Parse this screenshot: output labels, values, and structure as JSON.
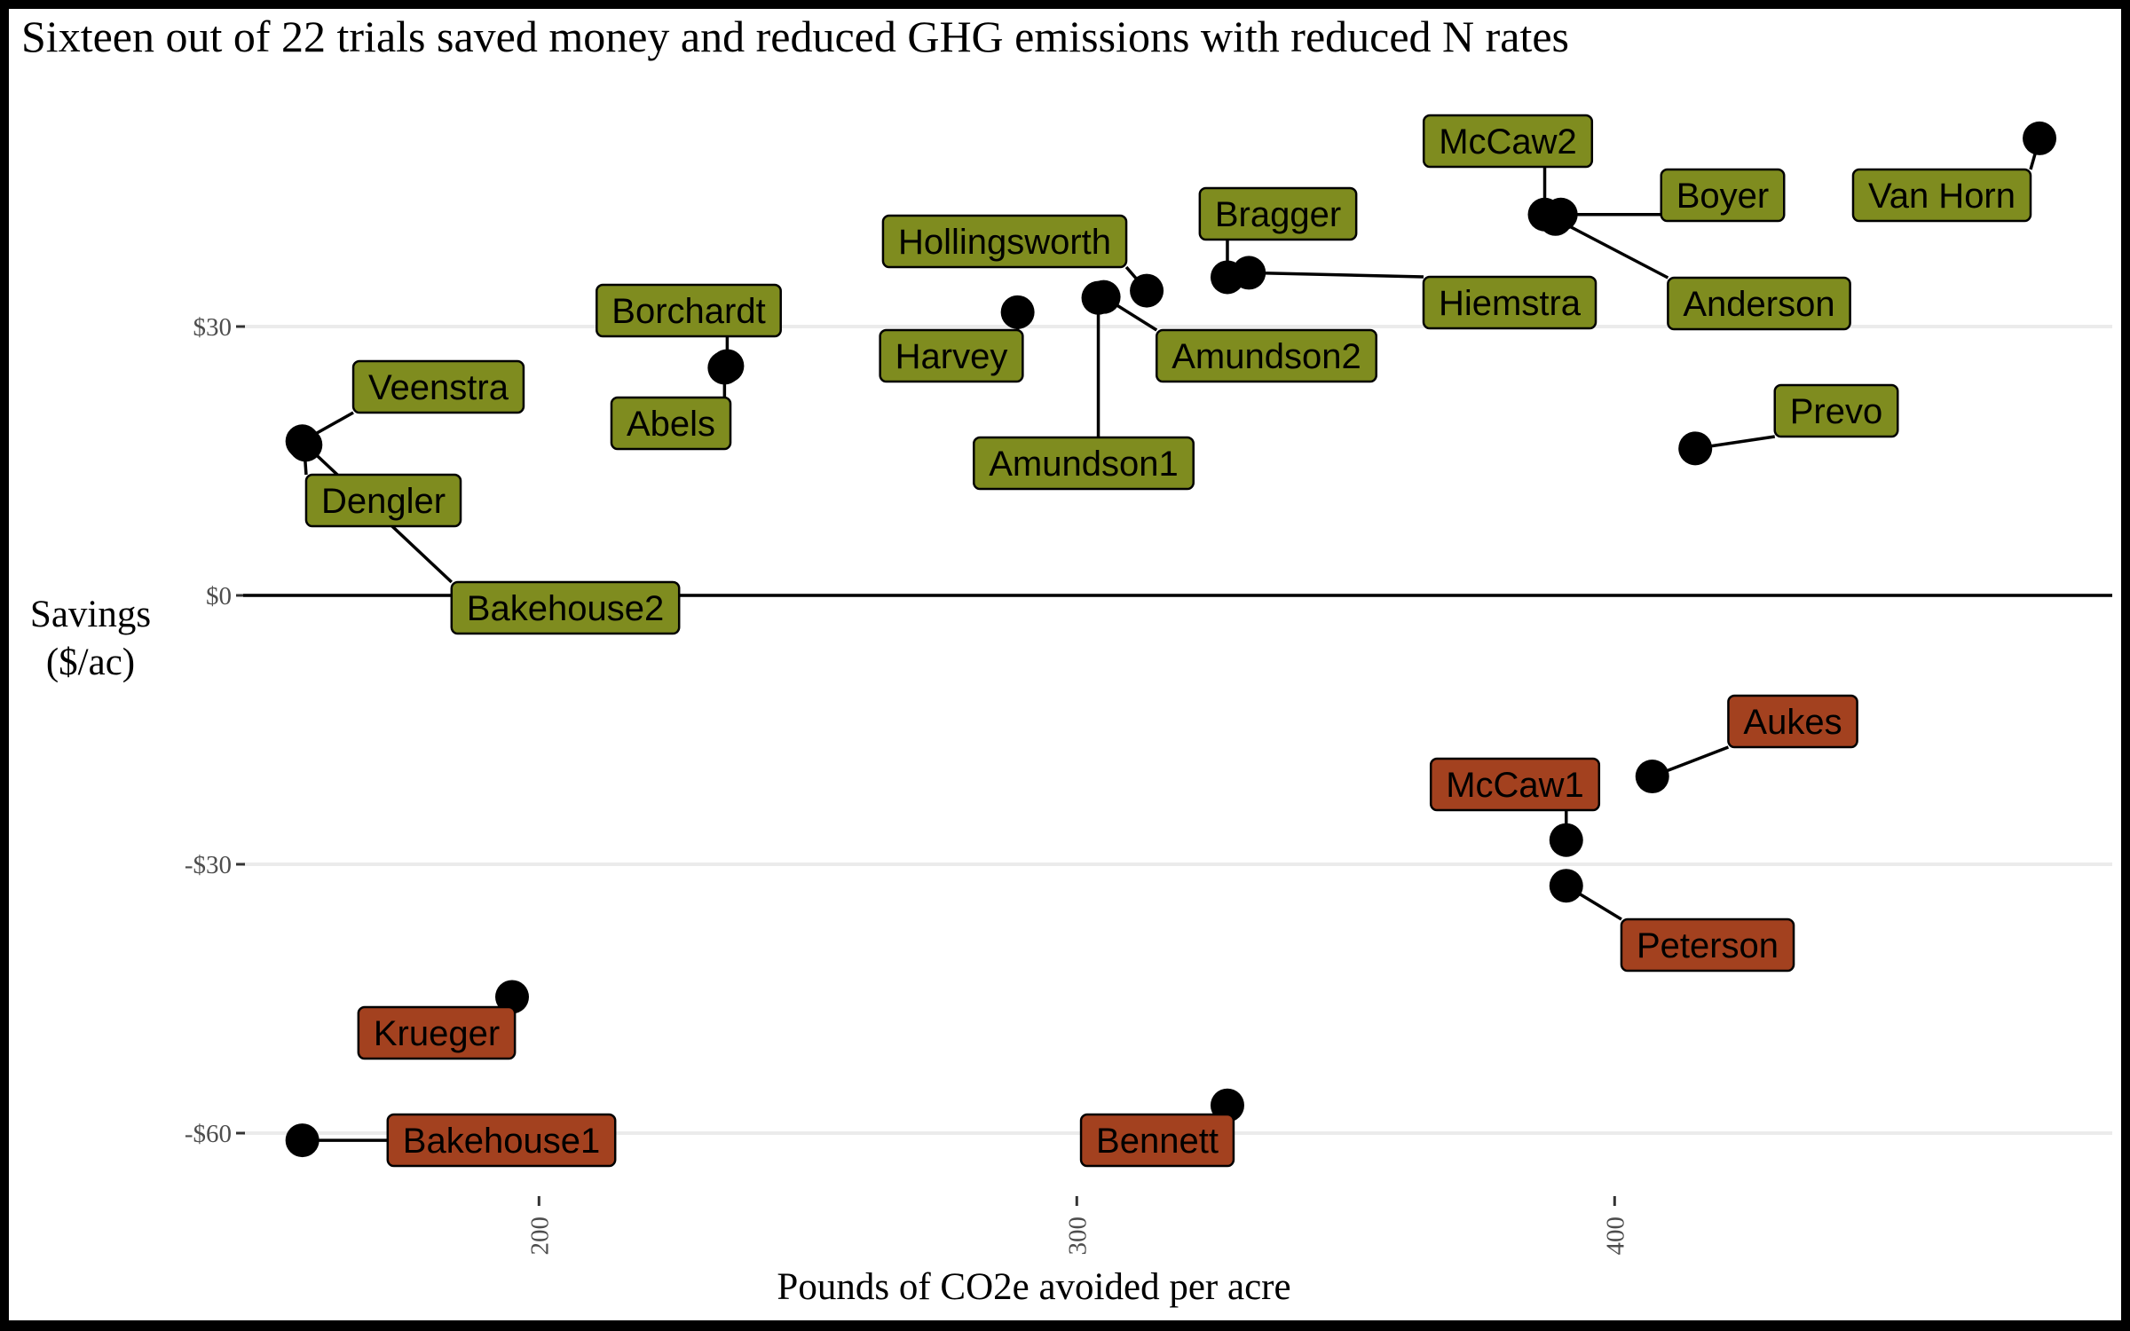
{
  "chart_data": {
    "type": "scatter",
    "title": "Sixteen out of 22 trials saved money and reduced GHG emissions with reduced N rates",
    "xlabel": "Pounds of CO2e avoided per acre",
    "ylabel": [
      "Savings",
      "($/ac)"
    ],
    "xlim": [
      145,
      485
    ],
    "ylim": [
      -67.4,
      59.5
    ],
    "x_ticks": [
      200,
      300,
      400
    ],
    "x_tick_labels": [
      "200",
      "300",
      "400"
    ],
    "y_ticks": [
      30,
      0,
      -30,
      -60
    ],
    "y_tick_labels": [
      "$30",
      "$0",
      "-$30",
      "-$60"
    ],
    "grid": "horizontal major",
    "zero_line": true,
    "colors": {
      "saved": "#7f8c1f",
      "lost": "#a3411f",
      "point": "#000000"
    },
    "points": [
      {
        "name": "Van Horn",
        "x": 479,
        "y": 51,
        "group": "saved"
      },
      {
        "name": "McCaw2",
        "x": 387,
        "y": 42.5,
        "group": "saved"
      },
      {
        "name": "Boyer",
        "x": 390,
        "y": 42.5,
        "group": "saved"
      },
      {
        "name": "Anderson",
        "x": 389,
        "y": 42,
        "group": "saved"
      },
      {
        "name": "Bragger",
        "x": 328,
        "y": 35.5,
        "group": "saved"
      },
      {
        "name": "Hiemstra",
        "x": 332,
        "y": 36,
        "group": "saved"
      },
      {
        "name": "Hollingsworth",
        "x": 313,
        "y": 34,
        "group": "saved"
      },
      {
        "name": "Amundson2",
        "x": 305,
        "y": 33.3,
        "group": "saved"
      },
      {
        "name": "Amundson1",
        "x": 304,
        "y": 33.2,
        "group": "saved"
      },
      {
        "name": "Harvey",
        "x": 289,
        "y": 31.6,
        "group": "saved"
      },
      {
        "name": "Borchardt",
        "x": 235,
        "y": 25.6,
        "group": "saved"
      },
      {
        "name": "Abels",
        "x": 234.5,
        "y": 25.4,
        "group": "saved"
      },
      {
        "name": "Veenstra",
        "x": 156,
        "y": 17.2,
        "group": "saved"
      },
      {
        "name": "Dengler",
        "x": 156.3,
        "y": 17,
        "group": "saved"
      },
      {
        "name": "Bakehouse2",
        "x": 156.6,
        "y": 16.8,
        "group": "saved"
      },
      {
        "name": "Prevo",
        "x": 415,
        "y": 16.4,
        "group": "saved"
      },
      {
        "name": "Aukes",
        "x": 407,
        "y": -20.2,
        "group": "lost"
      },
      {
        "name": "McCaw1",
        "x": 391,
        "y": -27.3,
        "group": "lost"
      },
      {
        "name": "Peterson",
        "x": 391,
        "y": -32.4,
        "group": "lost"
      },
      {
        "name": "Krueger",
        "x": 195,
        "y": -44.8,
        "group": "lost"
      },
      {
        "name": "Bennett",
        "x": 328,
        "y": -56.9,
        "group": "lost"
      },
      {
        "name": "Bakehouse1",
        "x": 156,
        "y": -60.8,
        "group": "lost"
      }
    ]
  }
}
